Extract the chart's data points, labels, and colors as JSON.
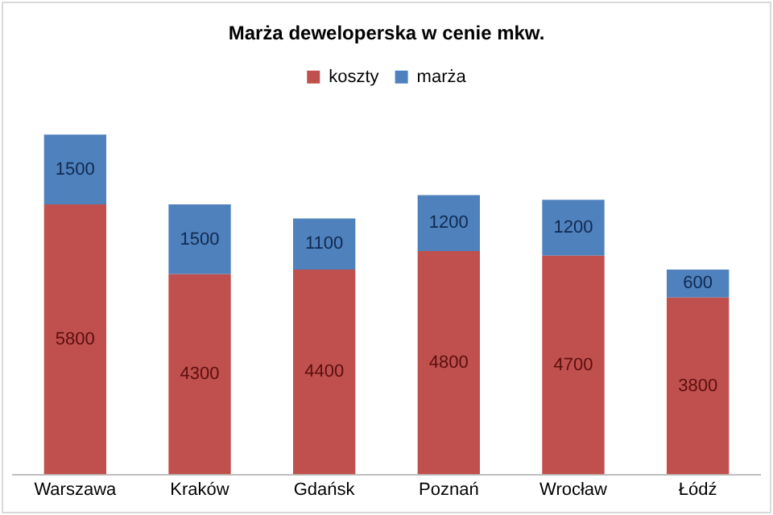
{
  "chart_data": {
    "type": "bar",
    "title": "Marża deweloperska w cenie mkw.",
    "categories": [
      "Warszawa",
      "Kraków",
      "Gdańsk",
      "Poznań",
      "Wrocław",
      "Łódź"
    ],
    "series": [
      {
        "name": "koszty",
        "color": "#c0504d",
        "values": [
          5800,
          4300,
          4400,
          4800,
          4700,
          3800
        ]
      },
      {
        "name": "marża",
        "color": "#4f81bd",
        "values": [
          1500,
          1500,
          1100,
          1200,
          1200,
          600
        ]
      }
    ],
    "stacked": true,
    "data_labels": true,
    "legend": "top",
    "grid": false
  }
}
